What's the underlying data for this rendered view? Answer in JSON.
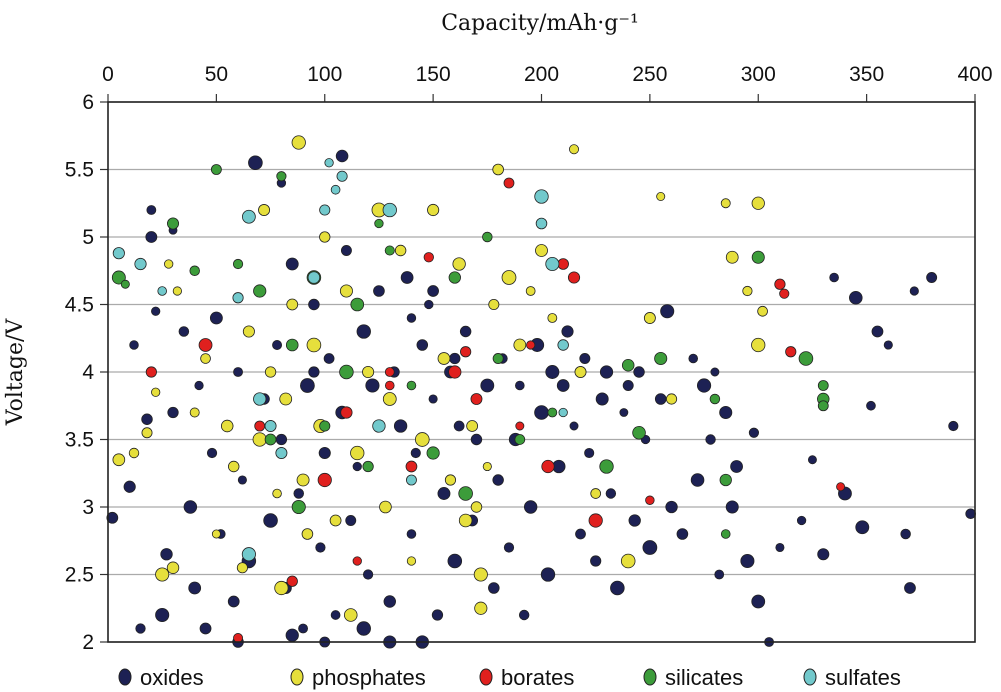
{
  "chart_data": {
    "type": "scatter",
    "xlabel": "Capacity/mAh·g⁻¹",
    "ylabel": "Voltage/V",
    "xlim": [
      0,
      400
    ],
    "ylim": [
      2,
      6
    ],
    "xticks": [
      "0",
      "50",
      "100",
      "150",
      "200",
      "250",
      "300",
      "350",
      "400"
    ],
    "yticks": [
      "2",
      "2.5",
      "3",
      "3.5",
      "4",
      "4.5",
      "5",
      "5.5",
      "6"
    ],
    "x_axis_position": "top",
    "grid": "horizontal",
    "legend_position": "bottom",
    "series": [
      {
        "name": "oxides",
        "color": "#1d2154",
        "points": [
          [
            2,
            2.92
          ],
          [
            10,
            3.15
          ],
          [
            12,
            4.2
          ],
          [
            15,
            2.1
          ],
          [
            18,
            3.65
          ],
          [
            20,
            5.0
          ],
          [
            22,
            4.45
          ],
          [
            25,
            2.2
          ],
          [
            27,
            2.65
          ],
          [
            30,
            3.7
          ],
          [
            35,
            4.3
          ],
          [
            38,
            3.0
          ],
          [
            40,
            2.4
          ],
          [
            42,
            3.9
          ],
          [
            45,
            2.1
          ],
          [
            48,
            3.4
          ],
          [
            50,
            4.4
          ],
          [
            52,
            2.8
          ],
          [
            55,
            3.6
          ],
          [
            58,
            2.3
          ],
          [
            60,
            4.0
          ],
          [
            62,
            3.2
          ],
          [
            65,
            2.6
          ],
          [
            68,
            5.55
          ],
          [
            70,
            4.6
          ],
          [
            72,
            3.8
          ],
          [
            75,
            2.9
          ],
          [
            78,
            4.2
          ],
          [
            80,
            3.5
          ],
          [
            82,
            2.4
          ],
          [
            85,
            4.8
          ],
          [
            88,
            3.1
          ],
          [
            90,
            2.1
          ],
          [
            92,
            3.9
          ],
          [
            95,
            4.5
          ],
          [
            98,
            2.7
          ],
          [
            100,
            3.4
          ],
          [
            102,
            4.1
          ],
          [
            105,
            2.2
          ],
          [
            108,
            3.7
          ],
          [
            110,
            4.9
          ],
          [
            112,
            2.9
          ],
          [
            115,
            3.3
          ],
          [
            118,
            4.3
          ],
          [
            120,
            2.5
          ],
          [
            122,
            3.9
          ],
          [
            125,
            4.6
          ],
          [
            128,
            3.0
          ],
          [
            130,
            2.3
          ],
          [
            132,
            4.0
          ],
          [
            135,
            3.6
          ],
          [
            138,
            4.7
          ],
          [
            140,
            2.8
          ],
          [
            142,
            3.4
          ],
          [
            145,
            4.2
          ],
          [
            148,
            4.5
          ],
          [
            150,
            3.8
          ],
          [
            152,
            2.2
          ],
          [
            155,
            3.1
          ],
          [
            158,
            4.0
          ],
          [
            160,
            2.6
          ],
          [
            162,
            3.6
          ],
          [
            165,
            4.3
          ],
          [
            168,
            2.9
          ],
          [
            170,
            3.5
          ],
          [
            175,
            3.9
          ],
          [
            178,
            2.4
          ],
          [
            180,
            3.2
          ],
          [
            182,
            4.1
          ],
          [
            185,
            2.7
          ],
          [
            188,
            3.5
          ],
          [
            190,
            3.9
          ],
          [
            192,
            2.2
          ],
          [
            195,
            3.0
          ],
          [
            198,
            4.2
          ],
          [
            200,
            3.7
          ],
          [
            203,
            2.5
          ],
          [
            205,
            4.0
          ],
          [
            208,
            3.3
          ],
          [
            210,
            3.9
          ],
          [
            212,
            4.3
          ],
          [
            215,
            3.6
          ],
          [
            218,
            2.8
          ],
          [
            220,
            4.1
          ],
          [
            222,
            3.4
          ],
          [
            225,
            2.6
          ],
          [
            228,
            3.8
          ],
          [
            230,
            4.0
          ],
          [
            232,
            3.1
          ],
          [
            235,
            2.4
          ],
          [
            238,
            3.7
          ],
          [
            240,
            3.9
          ],
          [
            243,
            2.9
          ],
          [
            245,
            4.0
          ],
          [
            248,
            3.5
          ],
          [
            250,
            2.7
          ],
          [
            255,
            3.8
          ],
          [
            258,
            4.45
          ],
          [
            260,
            3.0
          ],
          [
            265,
            2.8
          ],
          [
            270,
            4.1
          ],
          [
            272,
            3.2
          ],
          [
            275,
            3.9
          ],
          [
            278,
            3.5
          ],
          [
            280,
            4.0
          ],
          [
            282,
            2.5
          ],
          [
            285,
            3.7
          ],
          [
            288,
            3.0
          ],
          [
            290,
            3.3
          ],
          [
            295,
            2.6
          ],
          [
            298,
            3.55
          ],
          [
            300,
            2.3
          ],
          [
            305,
            2.0
          ],
          [
            310,
            2.7
          ],
          [
            320,
            2.9
          ],
          [
            325,
            3.35
          ],
          [
            330,
            2.65
          ],
          [
            340,
            3.1
          ],
          [
            348,
            2.85
          ],
          [
            352,
            3.75
          ],
          [
            355,
            4.3
          ],
          [
            360,
            4.2
          ],
          [
            368,
            2.8
          ],
          [
            370,
            2.4
          ],
          [
            372,
            4.6
          ],
          [
            380,
            4.7
          ],
          [
            390,
            3.6
          ],
          [
            398,
            2.95
          ],
          [
            345,
            4.55
          ],
          [
            335,
            4.7
          ],
          [
            20,
            5.2
          ],
          [
            30,
            5.05
          ],
          [
            108,
            5.6
          ],
          [
            80,
            5.4
          ],
          [
            95,
            4.0
          ],
          [
            140,
            4.4
          ],
          [
            150,
            4.6
          ],
          [
            160,
            4.1
          ],
          [
            170,
            3.0
          ],
          [
            145,
            2.0
          ],
          [
            60,
            2.0
          ],
          [
            85,
            2.05
          ],
          [
            100,
            2.0
          ],
          [
            118,
            2.1
          ],
          [
            130,
            2.0
          ]
        ]
      },
      {
        "name": "phosphates",
        "color": "#e6df3c",
        "points": [
          [
            5,
            3.35
          ],
          [
            12,
            3.4
          ],
          [
            18,
            3.55
          ],
          [
            22,
            3.85
          ],
          [
            25,
            2.5
          ],
          [
            28,
            4.8
          ],
          [
            32,
            4.6
          ],
          [
            40,
            3.7
          ],
          [
            45,
            4.1
          ],
          [
            50,
            2.8
          ],
          [
            55,
            3.6
          ],
          [
            58,
            3.3
          ],
          [
            62,
            2.55
          ],
          [
            65,
            4.3
          ],
          [
            70,
            3.5
          ],
          [
            72,
            5.2
          ],
          [
            75,
            4.0
          ],
          [
            78,
            3.1
          ],
          [
            80,
            2.4
          ],
          [
            82,
            3.8
          ],
          [
            85,
            4.5
          ],
          [
            88,
            5.7
          ],
          [
            90,
            3.2
          ],
          [
            92,
            2.8
          ],
          [
            95,
            4.2
          ],
          [
            98,
            3.6
          ],
          [
            100,
            5.0
          ],
          [
            105,
            2.9
          ],
          [
            110,
            4.6
          ],
          [
            112,
            2.2
          ],
          [
            115,
            3.4
          ],
          [
            120,
            4.0
          ],
          [
            125,
            5.2
          ],
          [
            128,
            3.0
          ],
          [
            130,
            3.8
          ],
          [
            135,
            4.9
          ],
          [
            140,
            2.6
          ],
          [
            145,
            3.5
          ],
          [
            150,
            5.2
          ],
          [
            155,
            4.1
          ],
          [
            158,
            3.2
          ],
          [
            162,
            4.8
          ],
          [
            165,
            2.9
          ],
          [
            168,
            3.6
          ],
          [
            170,
            3.0
          ],
          [
            172,
            2.5
          ],
          [
            172,
            2.25
          ],
          [
            175,
            3.3
          ],
          [
            178,
            4.5
          ],
          [
            180,
            5.5
          ],
          [
            185,
            4.7
          ],
          [
            190,
            4.2
          ],
          [
            195,
            4.6
          ],
          [
            200,
            4.9
          ],
          [
            205,
            4.4
          ],
          [
            215,
            5.65
          ],
          [
            218,
            4.0
          ],
          [
            225,
            3.1
          ],
          [
            230,
            3.3
          ],
          [
            240,
            2.6
          ],
          [
            250,
            4.4
          ],
          [
            255,
            5.3
          ],
          [
            260,
            3.8
          ],
          [
            285,
            5.25
          ],
          [
            288,
            4.85
          ],
          [
            295,
            4.6
          ],
          [
            300,
            5.25
          ],
          [
            302,
            4.45
          ],
          [
            300,
            4.2
          ],
          [
            30,
            2.55
          ]
        ]
      },
      {
        "name": "borates",
        "color": "#e0201e",
        "points": [
          [
            20,
            4.0
          ],
          [
            45,
            4.2
          ],
          [
            60,
            2.03
          ],
          [
            70,
            3.6
          ],
          [
            85,
            2.45
          ],
          [
            100,
            3.2
          ],
          [
            110,
            3.7
          ],
          [
            115,
            2.6
          ],
          [
            130,
            4.0
          ],
          [
            140,
            3.3
          ],
          [
            148,
            4.85
          ],
          [
            165,
            4.15
          ],
          [
            170,
            3.8
          ],
          [
            185,
            5.4
          ],
          [
            190,
            3.6
          ],
          [
            195,
            4.2
          ],
          [
            203,
            3.3
          ],
          [
            210,
            4.8
          ],
          [
            215,
            4.7
          ],
          [
            225,
            2.9
          ],
          [
            250,
            3.05
          ],
          [
            310,
            4.65
          ],
          [
            312,
            4.58
          ],
          [
            315,
            4.15
          ],
          [
            338,
            3.15
          ],
          [
            130,
            3.9
          ],
          [
            160,
            4.0
          ]
        ]
      },
      {
        "name": "silicates",
        "color": "#3c9c3a",
        "points": [
          [
            5,
            4.7
          ],
          [
            8,
            4.65
          ],
          [
            30,
            5.1
          ],
          [
            40,
            4.75
          ],
          [
            50,
            5.5
          ],
          [
            60,
            4.8
          ],
          [
            70,
            4.6
          ],
          [
            75,
            3.5
          ],
          [
            80,
            5.45
          ],
          [
            85,
            4.2
          ],
          [
            88,
            3.0
          ],
          [
            95,
            4.7
          ],
          [
            100,
            3.6
          ],
          [
            110,
            4.0
          ],
          [
            115,
            4.5
          ],
          [
            120,
            3.3
          ],
          [
            125,
            5.1
          ],
          [
            130,
            4.9
          ],
          [
            140,
            3.9
          ],
          [
            150,
            3.4
          ],
          [
            160,
            4.7
          ],
          [
            165,
            3.1
          ],
          [
            175,
            5.0
          ],
          [
            180,
            4.1
          ],
          [
            190,
            3.5
          ],
          [
            205,
            3.7
          ],
          [
            230,
            3.3
          ],
          [
            240,
            4.05
          ],
          [
            245,
            3.55
          ],
          [
            255,
            4.1
          ],
          [
            280,
            3.8
          ],
          [
            285,
            3.2
          ],
          [
            285,
            2.8
          ],
          [
            300,
            4.85
          ],
          [
            322,
            4.1
          ],
          [
            330,
            3.8
          ],
          [
            330,
            3.9
          ],
          [
            330,
            3.75
          ]
        ]
      },
      {
        "name": "sulfates",
        "color": "#72c9cc",
        "points": [
          [
            5,
            4.88
          ],
          [
            15,
            4.8
          ],
          [
            25,
            4.6
          ],
          [
            60,
            4.55
          ],
          [
            65,
            5.15
          ],
          [
            70,
            3.8
          ],
          [
            75,
            3.6
          ],
          [
            80,
            3.4
          ],
          [
            95,
            4.7
          ],
          [
            100,
            5.2
          ],
          [
            102,
            5.55
          ],
          [
            105,
            5.35
          ],
          [
            108,
            5.45
          ],
          [
            130,
            5.2
          ],
          [
            125,
            3.6
          ],
          [
            200,
            5.3
          ],
          [
            200,
            5.1
          ],
          [
            205,
            4.8
          ],
          [
            210,
            4.2
          ],
          [
            210,
            3.7
          ],
          [
            65,
            2.65
          ],
          [
            140,
            3.2
          ]
        ]
      }
    ]
  }
}
